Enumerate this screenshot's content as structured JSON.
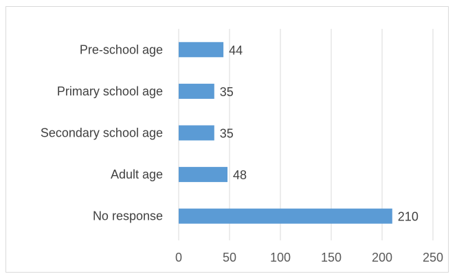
{
  "chart_data": {
    "type": "bar",
    "orientation": "horizontal",
    "categories": [
      "Pre-school age",
      "Primary school age",
      "Secondary school age",
      "Adult age",
      "No response"
    ],
    "values": [
      44,
      35,
      35,
      48,
      210
    ],
    "xlim": [
      0,
      250
    ],
    "xticks": [
      0,
      50,
      100,
      150,
      200,
      250
    ],
    "grid": true,
    "bar_color": "#5b9bd5",
    "grid_color": "#d9d9d9",
    "data_labels": true
  }
}
